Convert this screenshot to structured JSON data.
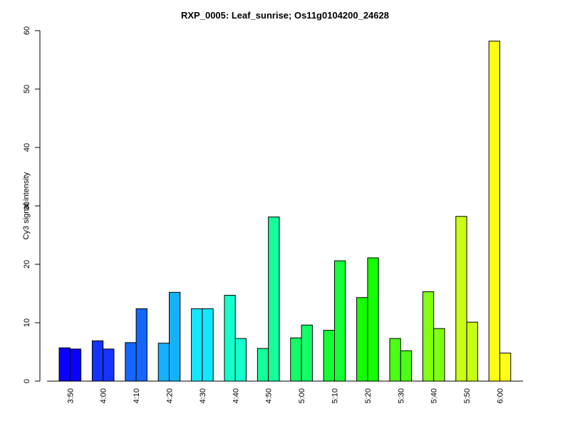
{
  "chart_data": {
    "type": "bar",
    "title": "RXP_0005: Leaf_sunrise; Os11g0104200_24628",
    "ylabel": "Cy3 signal intensity",
    "xlabel": "",
    "ylim": [
      0,
      60
    ],
    "yticks": [
      0,
      10,
      20,
      30,
      40,
      50,
      60
    ],
    "grid": false,
    "legend": "none",
    "categories": [
      "3:50",
      "4:00",
      "4:10",
      "4:20",
      "4:30",
      "4:40",
      "4:50",
      "5:00",
      "5:10",
      "5:20",
      "5:30",
      "5:40",
      "5:50",
      "6:00"
    ],
    "series": [
      {
        "values": [
          5.7,
          6.9,
          6.6,
          6.5,
          12.4,
          14.7,
          5.6,
          7.4,
          8.7,
          14.3,
          7.3,
          15.3,
          28.2,
          58.2
        ]
      },
      {
        "values": [
          5.5,
          5.5,
          12.4,
          15.2,
          12.4,
          7.3,
          28.1,
          9.6,
          20.6,
          21.1,
          5.2,
          9.0,
          10.1,
          4.8
        ]
      }
    ],
    "colors": [
      "#0a00ff",
      "#1433ff",
      "#1466ff",
      "#14b1ff",
      "#14e6ff",
      "#14ffcc",
      "#14ff99",
      "#14ff66",
      "#14ff33",
      "#14ff00",
      "#4cff14",
      "#80ff14",
      "#c8ff14",
      "#ffff14"
    ]
  }
}
